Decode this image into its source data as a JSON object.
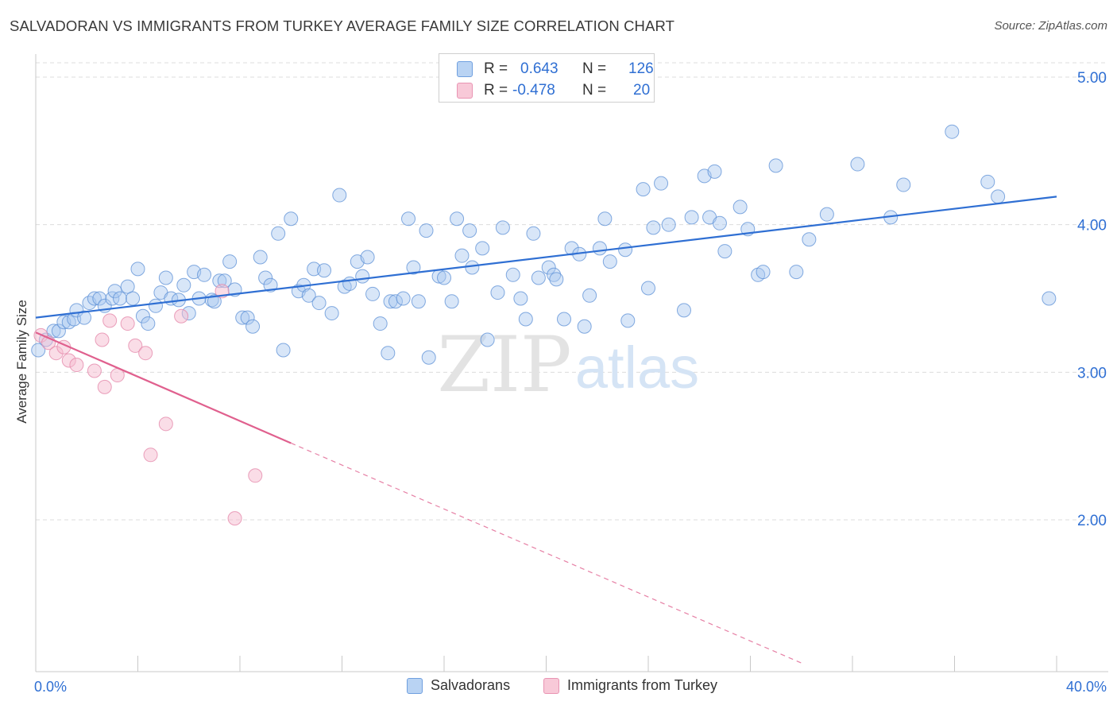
{
  "title": "SALVADORAN VS IMMIGRANTS FROM TURKEY AVERAGE FAMILY SIZE CORRELATION CHART",
  "source": "Source: ZipAtlas.com",
  "watermark": {
    "zip": "ZIP",
    "atlas": "atlas"
  },
  "legend": {
    "rows": [
      {
        "r_label": "R =",
        "r_value": "0.643",
        "n_label": "N =",
        "n_value": "126",
        "color": "#8fb8ea"
      },
      {
        "r_label": "R =",
        "r_value": "-0.478",
        "n_label": "N =",
        "n_value": "20",
        "color": "#f4a9c1"
      }
    ]
  },
  "bottom_legend": [
    "Salvadorans",
    "Immigrants from Turkey"
  ],
  "chart_data": {
    "type": "scatter",
    "title": "SALVADORAN VS IMMIGRANTS FROM TURKEY AVERAGE FAMILY SIZE CORRELATION CHART",
    "xlabel": "",
    "ylabel": "Average Family Size",
    "xlim": [
      0,
      40
    ],
    "ylim": [
      1.1,
      5.1
    ],
    "x_tick_labels": [
      "0.0%",
      "40.0%"
    ],
    "y_ticks": [
      2.0,
      3.0,
      4.0,
      5.0
    ],
    "y_tick_labels": [
      "2.00",
      "3.00",
      "4.00",
      "5.00"
    ],
    "grid": true,
    "colors": {
      "blue": "#2f6fd3",
      "blue_fill": "#a9c8ef",
      "pink": "#e0608e",
      "pink_fill": "#f6bcd0"
    },
    "series": [
      {
        "name": "Salvadorans",
        "R": 0.643,
        "N": 126,
        "trend": {
          "x": [
            0,
            40
          ],
          "y": [
            3.37,
            4.19
          ]
        },
        "points": [
          [
            0.1,
            3.15
          ],
          [
            0.4,
            3.22
          ],
          [
            0.7,
            3.28
          ],
          [
            0.9,
            3.28
          ],
          [
            1.1,
            3.34
          ],
          [
            1.3,
            3.34
          ],
          [
            1.5,
            3.36
          ],
          [
            1.6,
            3.42
          ],
          [
            1.9,
            3.37
          ],
          [
            2.1,
            3.47
          ],
          [
            2.3,
            3.5
          ],
          [
            2.5,
            3.5
          ],
          [
            2.7,
            3.45
          ],
          [
            3.0,
            3.5
          ],
          [
            3.1,
            3.55
          ],
          [
            3.3,
            3.5
          ],
          [
            3.6,
            3.58
          ],
          [
            3.8,
            3.5
          ],
          [
            4.0,
            3.7
          ],
          [
            4.2,
            3.38
          ],
          [
            4.4,
            3.33
          ],
          [
            4.7,
            3.45
          ],
          [
            4.9,
            3.54
          ],
          [
            5.1,
            3.64
          ],
          [
            5.3,
            3.5
          ],
          [
            5.6,
            3.49
          ],
          [
            5.8,
            3.59
          ],
          [
            6.0,
            3.4
          ],
          [
            6.2,
            3.68
          ],
          [
            6.4,
            3.5
          ],
          [
            6.6,
            3.66
          ],
          [
            6.9,
            3.49
          ],
          [
            7.0,
            3.48
          ],
          [
            7.2,
            3.62
          ],
          [
            7.4,
            3.62
          ],
          [
            7.6,
            3.75
          ],
          [
            7.8,
            3.56
          ],
          [
            8.1,
            3.37
          ],
          [
            8.3,
            3.37
          ],
          [
            8.5,
            3.31
          ],
          [
            8.8,
            3.78
          ],
          [
            9.0,
            3.64
          ],
          [
            9.2,
            3.59
          ],
          [
            9.5,
            3.94
          ],
          [
            9.7,
            3.15
          ],
          [
            10.0,
            4.04
          ],
          [
            10.3,
            3.55
          ],
          [
            10.5,
            3.59
          ],
          [
            10.7,
            3.52
          ],
          [
            10.9,
            3.7
          ],
          [
            11.1,
            3.47
          ],
          [
            11.3,
            3.69
          ],
          [
            11.6,
            3.4
          ],
          [
            11.9,
            4.2
          ],
          [
            12.1,
            3.58
          ],
          [
            12.3,
            3.6
          ],
          [
            12.6,
            3.75
          ],
          [
            12.8,
            3.65
          ],
          [
            13.0,
            3.78
          ],
          [
            13.2,
            3.53
          ],
          [
            13.5,
            3.33
          ],
          [
            13.8,
            3.13
          ],
          [
            13.9,
            3.48
          ],
          [
            14.1,
            3.48
          ],
          [
            14.4,
            3.5
          ],
          [
            14.6,
            4.04
          ],
          [
            14.8,
            3.71
          ],
          [
            15.0,
            3.48
          ],
          [
            15.3,
            3.96
          ],
          [
            15.4,
            3.1
          ],
          [
            15.8,
            3.65
          ],
          [
            16.0,
            3.64
          ],
          [
            16.3,
            3.48
          ],
          [
            16.5,
            4.04
          ],
          [
            16.7,
            3.79
          ],
          [
            17.0,
            3.96
          ],
          [
            17.1,
            3.71
          ],
          [
            17.5,
            3.84
          ],
          [
            17.7,
            3.22
          ],
          [
            18.1,
            3.54
          ],
          [
            18.3,
            3.98
          ],
          [
            18.7,
            3.66
          ],
          [
            19.0,
            3.5
          ],
          [
            19.2,
            3.36
          ],
          [
            19.5,
            3.94
          ],
          [
            19.7,
            3.64
          ],
          [
            20.1,
            3.71
          ],
          [
            20.3,
            3.66
          ],
          [
            20.4,
            3.63
          ],
          [
            20.7,
            3.36
          ],
          [
            21.0,
            3.84
          ],
          [
            21.3,
            3.8
          ],
          [
            21.5,
            3.31
          ],
          [
            21.7,
            3.52
          ],
          [
            22.1,
            3.84
          ],
          [
            22.3,
            4.04
          ],
          [
            22.5,
            3.75
          ],
          [
            23.1,
            3.83
          ],
          [
            23.2,
            3.35
          ],
          [
            23.8,
            4.24
          ],
          [
            24.0,
            3.57
          ],
          [
            24.2,
            3.98
          ],
          [
            24.5,
            4.28
          ],
          [
            24.8,
            4.0
          ],
          [
            25.4,
            3.42
          ],
          [
            25.7,
            4.05
          ],
          [
            26.2,
            4.33
          ],
          [
            26.4,
            4.05
          ],
          [
            26.6,
            4.36
          ],
          [
            26.8,
            4.01
          ],
          [
            27.0,
            3.82
          ],
          [
            27.6,
            4.12
          ],
          [
            27.9,
            3.97
          ],
          [
            28.3,
            3.66
          ],
          [
            28.5,
            3.68
          ],
          [
            29.0,
            4.4
          ],
          [
            29.8,
            3.68
          ],
          [
            30.3,
            3.9
          ],
          [
            31.0,
            4.07
          ],
          [
            32.2,
            4.41
          ],
          [
            33.5,
            4.05
          ],
          [
            34.0,
            4.27
          ],
          [
            35.9,
            4.63
          ],
          [
            37.3,
            4.29
          ],
          [
            37.7,
            4.19
          ],
          [
            39.7,
            3.5
          ]
        ]
      },
      {
        "name": "Immigrants from Turkey",
        "R": -0.478,
        "N": 20,
        "trend": {
          "x": [
            0,
            10
          ],
          "y": [
            3.27,
            2.52
          ],
          "dashed_to": {
            "x": 30.0,
            "y": 1.03
          }
        },
        "points": [
          [
            0.2,
            3.25
          ],
          [
            0.5,
            3.2
          ],
          [
            0.8,
            3.13
          ],
          [
            1.1,
            3.17
          ],
          [
            1.3,
            3.08
          ],
          [
            1.6,
            3.05
          ],
          [
            2.3,
            3.01
          ],
          [
            2.6,
            3.22
          ],
          [
            2.7,
            2.9
          ],
          [
            2.9,
            3.35
          ],
          [
            3.2,
            2.98
          ],
          [
            3.6,
            3.33
          ],
          [
            3.9,
            3.18
          ],
          [
            4.3,
            3.13
          ],
          [
            4.5,
            2.44
          ],
          [
            5.1,
            2.65
          ],
          [
            5.7,
            3.38
          ],
          [
            7.3,
            3.55
          ],
          [
            7.8,
            2.01
          ],
          [
            8.6,
            2.3
          ]
        ]
      }
    ]
  }
}
